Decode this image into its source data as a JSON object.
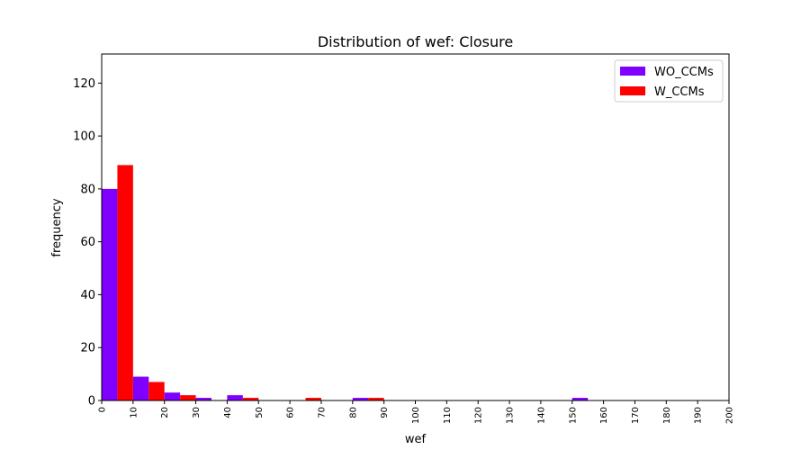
{
  "chart_data": {
    "type": "bar",
    "title": "Distribution of wef: Closure",
    "xlabel": "wef",
    "ylabel": "frequency",
    "xlim": [
      0,
      200
    ],
    "ylim": [
      0,
      131
    ],
    "xticks": [
      "0",
      "10",
      "20",
      "30",
      "40",
      "50",
      "60",
      "70",
      "80",
      "90",
      "100",
      "110",
      "120",
      "130",
      "140",
      "150",
      "160",
      "170",
      "180",
      "190",
      "200"
    ],
    "yticks": [
      "0",
      "20",
      "40",
      "60",
      "80",
      "100",
      "120"
    ],
    "legend_position": "top-right",
    "bin_width": 10,
    "series": [
      {
        "name": "WO_CCMs",
        "color": "#7f00ff",
        "bins": [
          {
            "x": 0,
            "y": 80
          },
          {
            "x": 10,
            "y": 9
          },
          {
            "x": 20,
            "y": 3
          },
          {
            "x": 30,
            "y": 1
          },
          {
            "x": 40,
            "y": 2
          },
          {
            "x": 80,
            "y": 1
          },
          {
            "x": 150,
            "y": 1
          }
        ]
      },
      {
        "name": "W_CCMs",
        "color": "#ff0000",
        "bins": [
          {
            "x": 0,
            "y": 89
          },
          {
            "x": 10,
            "y": 7
          },
          {
            "x": 20,
            "y": 2
          },
          {
            "x": 40,
            "y": 1
          },
          {
            "x": 60,
            "y": 1
          },
          {
            "x": 80,
            "y": 1
          }
        ]
      }
    ]
  }
}
